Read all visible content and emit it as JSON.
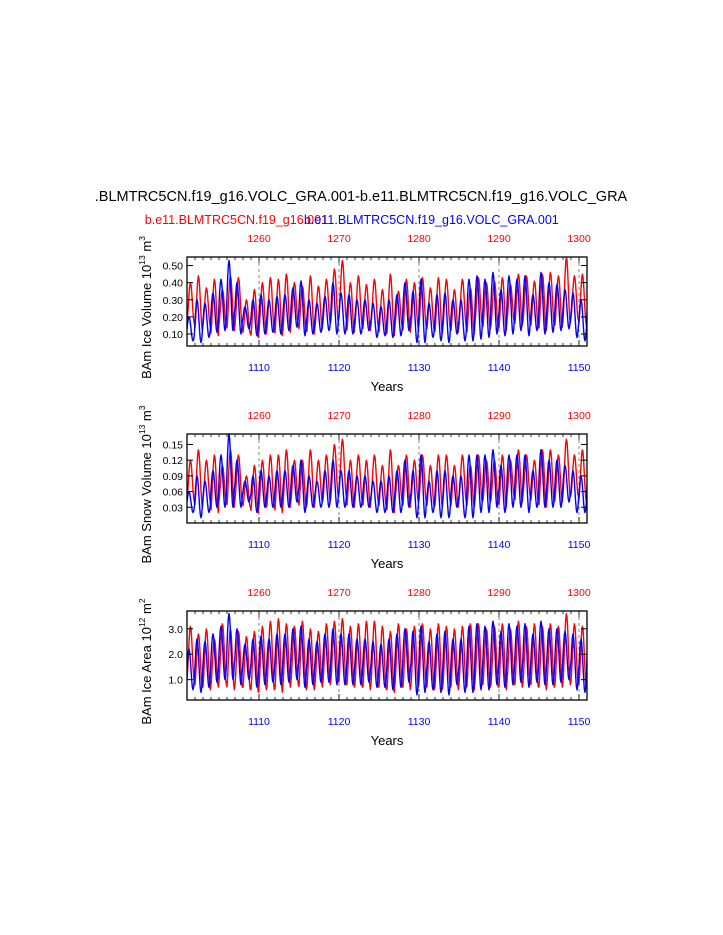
{
  "figure": {
    "main_title": ".BLMTRC5CN.f19_g16.VOLC_GRA.001-b.e11.BLMTRC5CN.f19_g16.VOLC_GRA",
    "legend": [
      {
        "label": "b.e11.BLMTRC5CN.f19_g16.001",
        "color": "#ff0000"
      },
      {
        "label": "b.e11.BLMTRC5CN.f19_g16.VOLC_GRA.001",
        "color": "#0000ff"
      }
    ],
    "xlabel": "Years",
    "top_axis_color": "#ff0000",
    "bottom_axis_color": "#0000ff"
  },
  "chart_data": [
    {
      "type": "line",
      "ylabel_base": "BAm Ice Volume 10",
      "ylabel_exp": "13",
      "ylabel_unit": "m",
      "ylabel_unit_exp": "3",
      "xlabel": "Years",
      "ylim": [
        0.03,
        0.55
      ],
      "yticks": [
        0.1,
        0.2,
        0.3,
        0.4,
        0.5
      ],
      "ytick_labels": [
        "0.10",
        "0.20",
        "0.30",
        "0.40",
        "0.50"
      ],
      "x_bottom_range": [
        1101,
        1151
      ],
      "x_bottom_ticks": [
        "1110",
        "1120",
        "1130",
        "1140",
        "1150"
      ],
      "x_top_range": [
        1251,
        1301
      ],
      "x_top_ticks": [
        "1260",
        "1270",
        "1280",
        "1290",
        "1300"
      ],
      "series": [
        {
          "name": "b.e11.BLMTRC5CN.f19_g16.001",
          "color": "#ff0000",
          "annual_max": [
            0.4,
            0.44,
            0.37,
            0.42,
            0.36,
            0.44,
            0.43,
            0.3,
            0.36,
            0.4,
            0.43,
            0.42,
            0.45,
            0.4,
            0.38,
            0.44,
            0.38,
            0.42,
            0.48,
            0.53,
            0.4,
            0.44,
            0.39,
            0.42,
            0.36,
            0.45,
            0.35,
            0.42,
            0.4,
            0.43,
            0.37,
            0.43,
            0.42,
            0.36,
            0.42,
            0.37,
            0.43,
            0.4,
            0.41,
            0.43,
            0.39,
            0.45,
            0.44,
            0.41,
            0.45,
            0.46,
            0.44,
            0.55,
            0.44,
            0.45,
            0.46
          ],
          "annual_min": [
            0.16,
            0.12,
            0.14,
            0.09,
            0.15,
            0.12,
            0.14,
            0.1,
            0.08,
            0.1,
            0.12,
            0.09,
            0.11,
            0.15,
            0.12,
            0.1,
            0.13,
            0.16,
            0.17,
            0.18,
            0.11,
            0.14,
            0.12,
            0.14,
            0.1,
            0.09,
            0.14,
            0.11,
            0.13,
            0.14,
            0.12,
            0.1,
            0.13,
            0.11,
            0.14,
            0.1,
            0.15,
            0.13,
            0.14,
            0.12,
            0.17,
            0.15,
            0.16,
            0.14,
            0.12,
            0.15,
            0.14,
            0.16,
            0.18,
            0.15,
            0.13
          ]
        },
        {
          "name": "b.e11.BLMTRC5CN.f19_g16.VOLC_GRA.001",
          "color": "#0000ff",
          "annual_max": [
            0.2,
            0.3,
            0.28,
            0.34,
            0.42,
            0.53,
            0.4,
            0.26,
            0.3,
            0.33,
            0.3,
            0.32,
            0.33,
            0.37,
            0.41,
            0.3,
            0.28,
            0.32,
            0.4,
            0.34,
            0.33,
            0.3,
            0.3,
            0.28,
            0.26,
            0.3,
            0.33,
            0.4,
            0.35,
            0.42,
            0.28,
            0.33,
            0.34,
            0.3,
            0.3,
            0.42,
            0.44,
            0.42,
            0.46,
            0.36,
            0.44,
            0.42,
            0.44,
            0.33,
            0.46,
            0.4,
            0.39,
            0.36,
            0.34,
            0.3,
            0.38
          ],
          "annual_min": [
            0.06,
            0.05,
            0.08,
            0.11,
            0.12,
            0.12,
            0.1,
            0.13,
            0.09,
            0.1,
            0.11,
            0.1,
            0.12,
            0.14,
            0.09,
            0.1,
            0.11,
            0.12,
            0.1,
            0.1,
            0.1,
            0.1,
            0.12,
            0.08,
            0.09,
            0.08,
            0.09,
            0.12,
            0.05,
            0.05,
            0.08,
            0.06,
            0.05,
            0.1,
            0.06,
            0.06,
            0.07,
            0.08,
            0.1,
            0.09,
            0.1,
            0.12,
            0.09,
            0.12,
            0.1,
            0.11,
            0.12,
            0.13,
            0.08,
            0.06,
            0.07
          ]
        }
      ]
    },
    {
      "type": "line",
      "ylabel_base": "BAm Snow Volume 10",
      "ylabel_exp": "13",
      "ylabel_unit": "m",
      "ylabel_unit_exp": "3",
      "xlabel": "Years",
      "ylim": [
        0.0,
        0.17
      ],
      "yticks": [
        0.03,
        0.06,
        0.09,
        0.12,
        0.15
      ],
      "ytick_labels": [
        "0.03",
        "0.06",
        "0.09",
        "0.12",
        "0.15"
      ],
      "x_bottom_range": [
        1101,
        1151
      ],
      "x_bottom_ticks": [
        "1110",
        "1120",
        "1130",
        "1140",
        "1150"
      ],
      "x_top_range": [
        1251,
        1301
      ],
      "x_top_ticks": [
        "1260",
        "1270",
        "1280",
        "1290",
        "1300"
      ],
      "series": [
        {
          "name": "b.e11.BLMTRC5CN.f19_g16.001",
          "color": "#ff0000",
          "annual_max": [
            0.12,
            0.14,
            0.12,
            0.13,
            0.11,
            0.14,
            0.13,
            0.09,
            0.11,
            0.12,
            0.13,
            0.13,
            0.14,
            0.12,
            0.12,
            0.14,
            0.12,
            0.13,
            0.15,
            0.16,
            0.12,
            0.13,
            0.12,
            0.13,
            0.11,
            0.14,
            0.11,
            0.13,
            0.12,
            0.13,
            0.11,
            0.13,
            0.13,
            0.11,
            0.13,
            0.11,
            0.13,
            0.12,
            0.12,
            0.13,
            0.12,
            0.14,
            0.13,
            0.12,
            0.14,
            0.14,
            0.13,
            0.16,
            0.13,
            0.14,
            0.14
          ],
          "annual_min": [
            0.04,
            0.03,
            0.04,
            0.02,
            0.04,
            0.03,
            0.04,
            0.03,
            0.02,
            0.03,
            0.03,
            0.02,
            0.03,
            0.04,
            0.03,
            0.03,
            0.04,
            0.04,
            0.05,
            0.05,
            0.03,
            0.04,
            0.03,
            0.04,
            0.03,
            0.02,
            0.04,
            0.03,
            0.04,
            0.04,
            0.03,
            0.03,
            0.04,
            0.03,
            0.04,
            0.03,
            0.04,
            0.04,
            0.04,
            0.03,
            0.05,
            0.04,
            0.05,
            0.04,
            0.03,
            0.04,
            0.04,
            0.05,
            0.05,
            0.04,
            0.04
          ]
        },
        {
          "name": "b.e11.BLMTRC5CN.f19_g16.VOLC_GRA.001",
          "color": "#0000ff",
          "annual_max": [
            0.06,
            0.09,
            0.08,
            0.1,
            0.13,
            0.17,
            0.12,
            0.08,
            0.09,
            0.1,
            0.09,
            0.1,
            0.1,
            0.11,
            0.12,
            0.09,
            0.08,
            0.1,
            0.12,
            0.1,
            0.1,
            0.09,
            0.09,
            0.08,
            0.08,
            0.09,
            0.1,
            0.12,
            0.1,
            0.13,
            0.08,
            0.1,
            0.1,
            0.09,
            0.09,
            0.13,
            0.13,
            0.13,
            0.14,
            0.11,
            0.13,
            0.13,
            0.13,
            0.1,
            0.14,
            0.12,
            0.12,
            0.11,
            0.1,
            0.09,
            0.12
          ],
          "annual_min": [
            0.02,
            0.01,
            0.02,
            0.03,
            0.03,
            0.03,
            0.03,
            0.04,
            0.02,
            0.03,
            0.03,
            0.03,
            0.03,
            0.04,
            0.02,
            0.03,
            0.03,
            0.03,
            0.03,
            0.03,
            0.03,
            0.03,
            0.03,
            0.02,
            0.02,
            0.02,
            0.02,
            0.03,
            0.01,
            0.01,
            0.02,
            0.01,
            0.01,
            0.03,
            0.01,
            0.01,
            0.02,
            0.02,
            0.03,
            0.02,
            0.03,
            0.03,
            0.02,
            0.03,
            0.03,
            0.03,
            0.03,
            0.04,
            0.02,
            0.02,
            0.02
          ]
        }
      ]
    },
    {
      "type": "line",
      "ylabel_base": "BAm Ice Area 10",
      "ylabel_exp": "12",
      "ylabel_unit": "m",
      "ylabel_unit_exp": "2",
      "xlabel": "Years",
      "ylim": [
        0.2,
        3.7
      ],
      "yticks": [
        1.0,
        2.0,
        3.0
      ],
      "ytick_labels": [
        "1.0",
        "2.0",
        "3.0"
      ],
      "x_bottom_range": [
        1101,
        1151
      ],
      "x_bottom_ticks": [
        "1110",
        "1120",
        "1130",
        "1140",
        "1150"
      ],
      "x_top_range": [
        1251,
        1301
      ],
      "x_top_ticks": [
        "1260",
        "1270",
        "1280",
        "1290",
        "1300"
      ],
      "series": [
        {
          "name": "b.e11.BLMTRC5CN.f19_g16.001",
          "color": "#ff0000",
          "annual_max": [
            3.1,
            2.8,
            3.0,
            2.6,
            3.2,
            3.0,
            2.9,
            2.7,
            2.9,
            3.1,
            3.3,
            3.4,
            3.2,
            3.1,
            3.3,
            3.0,
            2.9,
            3.2,
            3.3,
            3.4,
            3.1,
            3.2,
            3.3,
            3.3,
            3.1,
            2.9,
            3.2,
            3.0,
            3.1,
            3.2,
            3.0,
            3.2,
            3.1,
            3.0,
            3.1,
            3.2,
            3.2,
            3.0,
            3.1,
            3.2,
            3.0,
            3.3,
            3.1,
            3.2,
            3.1,
            3.2,
            3.1,
            3.6,
            3.2,
            3.1,
            3.0
          ],
          "annual_min": [
            0.9,
            0.7,
            0.6,
            0.7,
            0.8,
            0.6,
            0.7,
            0.6,
            0.5,
            0.6,
            0.6,
            0.5,
            0.7,
            0.8,
            0.6,
            0.6,
            0.7,
            0.8,
            0.9,
            0.8,
            0.7,
            0.7,
            0.6,
            0.7,
            0.6,
            0.5,
            0.7,
            0.6,
            0.7,
            0.8,
            0.6,
            0.6,
            0.7,
            0.6,
            0.7,
            0.6,
            0.8,
            0.7,
            0.7,
            0.6,
            0.8,
            0.7,
            0.8,
            0.7,
            0.6,
            0.7,
            0.7,
            0.8,
            0.8,
            0.7,
            0.7
          ]
        },
        {
          "name": "b.e11.BLMTRC5CN.f19_g16.VOLC_GRA.001",
          "color": "#0000ff",
          "annual_max": [
            2.2,
            2.6,
            2.5,
            2.8,
            3.1,
            3.6,
            3.0,
            2.4,
            2.6,
            2.7,
            2.6,
            2.8,
            2.8,
            3.0,
            3.1,
            2.6,
            2.5,
            2.8,
            3.0,
            2.8,
            2.8,
            2.6,
            2.6,
            2.5,
            2.4,
            2.6,
            2.8,
            3.0,
            2.9,
            3.1,
            2.5,
            2.8,
            2.9,
            2.6,
            2.6,
            3.1,
            3.2,
            3.1,
            3.3,
            2.9,
            3.2,
            3.1,
            3.2,
            2.8,
            3.3,
            3.0,
            3.0,
            2.9,
            2.8,
            2.6,
            3.0
          ],
          "annual_min": [
            0.6,
            0.5,
            0.7,
            0.9,
            1.0,
            1.0,
            0.8,
            1.0,
            0.7,
            0.8,
            0.9,
            0.8,
            0.9,
            1.0,
            0.7,
            0.8,
            0.9,
            0.9,
            0.8,
            0.8,
            0.8,
            0.8,
            0.9,
            0.7,
            0.7,
            0.6,
            0.7,
            0.9,
            0.4,
            0.5,
            0.6,
            0.5,
            0.4,
            0.8,
            0.5,
            0.5,
            0.6,
            0.6,
            0.8,
            0.7,
            0.8,
            0.9,
            0.7,
            0.9,
            0.8,
            0.8,
            0.9,
            1.0,
            0.6,
            0.5,
            0.6
          ]
        }
      ]
    }
  ]
}
